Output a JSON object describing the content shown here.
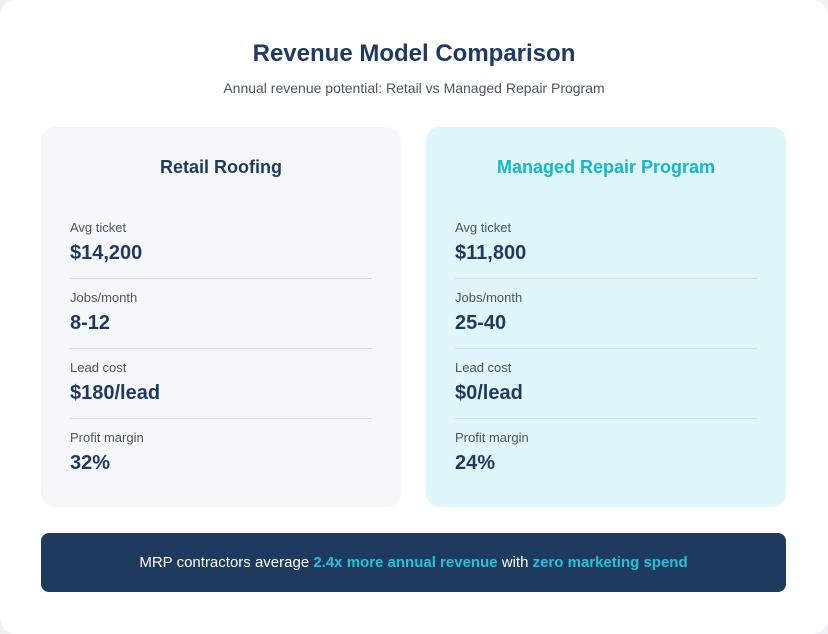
{
  "header": {
    "title": "Revenue Model Comparison",
    "subtitle": "Annual revenue potential: Retail vs Managed Repair Program"
  },
  "retail": {
    "title": "Retail Roofing",
    "metrics": [
      {
        "label": "Avg ticket",
        "value": "$14,200"
      },
      {
        "label": "Jobs/month",
        "value": "8-12"
      },
      {
        "label": "Lead cost",
        "value": "$180/lead"
      },
      {
        "label": "Profit margin",
        "value": "32%"
      }
    ]
  },
  "mrp": {
    "title": "Managed Repair Program",
    "metrics": [
      {
        "label": "Avg ticket",
        "value": "$11,800"
      },
      {
        "label": "Jobs/month",
        "value": "25-40"
      },
      {
        "label": "Lead cost",
        "value": "$0/lead"
      },
      {
        "label": "Profit margin",
        "value": "24%"
      }
    ]
  },
  "banner": {
    "prefix": "MRP contractors average ",
    "highlight_1": "2.4x more annual revenue",
    "middle": " with ",
    "highlight_2": "zero marketing spend"
  },
  "colors": {
    "navy": "#1e3a5f",
    "accent": "#14b8cc",
    "retail_panel_bg": "#f5f7fa",
    "mrp_panel_bg": "#dff6fb"
  }
}
